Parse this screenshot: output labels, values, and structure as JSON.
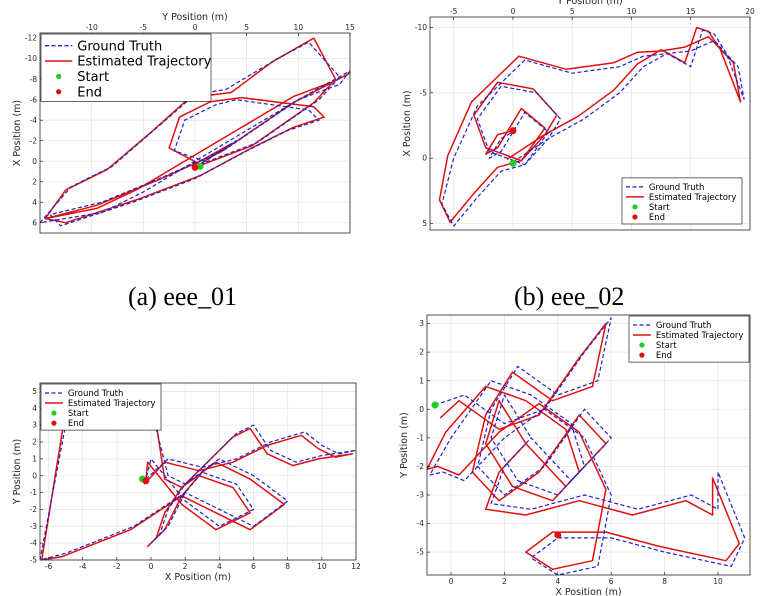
{
  "captions": [
    "(a) eee_01",
    "(b) eee_02"
  ],
  "colors": {
    "ground_truth": "#1f1fcc",
    "estimated": "#e01010",
    "start": "#22cc22",
    "end": "#e01010",
    "grid": "#e6e6e6"
  },
  "chart_data": [
    {
      "type": "line",
      "xlabel": "Y Position (m)",
      "ylabel": "X Position (m)",
      "x_axis_position": "top",
      "y_reversed": true,
      "xlim": [
        -15,
        15
      ],
      "ylim": [
        -12.5,
        7
      ],
      "xticks": [
        -10,
        -5,
        0,
        5,
        10,
        15
      ],
      "yticks": [
        -12,
        -10,
        -8,
        -6,
        -4,
        -2,
        0,
        2,
        4,
        6
      ],
      "grid": true,
      "legend": {
        "placement": "top-left",
        "font": 13,
        "entries": [
          "Ground Truth",
          "Estimated Trajectory",
          "Start",
          "End"
        ]
      },
      "series": [
        {
          "name": "Ground Truth",
          "x": [
            0.5,
            6,
            12,
            14,
            11,
            8,
            3,
            0,
            -4,
            -8,
            -12,
            -15,
            -9,
            -5,
            0,
            5,
            10,
            14,
            15,
            10,
            3,
            -3,
            -9,
            -14,
            -13,
            -6,
            0,
            5,
            9,
            12,
            11,
            4,
            2,
            -1,
            -2,
            1,
            4,
            0
          ],
          "y": [
            0.3,
            -1.8,
            -6,
            -8.2,
            -11.6,
            -10,
            -7,
            -6.5,
            -3,
            0.5,
            2.5,
            6,
            5,
            3,
            0,
            -3,
            -6,
            -7.5,
            -8.8,
            -6,
            -1.2,
            1.5,
            4,
            5.2,
            6.3,
            4,
            1.7,
            -1,
            -3,
            -4,
            -5,
            -6,
            -5.5,
            -4,
            -1,
            0,
            -2,
            0.6
          ]
        },
        {
          "name": "Estimated Trajectory",
          "x": [
            0,
            5.5,
            11.5,
            13.6,
            11.5,
            7.5,
            3.5,
            -0.5,
            -4.5,
            -8.5,
            -12.5,
            -14.5,
            -9.5,
            -5.5,
            -0.5,
            4.5,
            9.5,
            13.5,
            15,
            9.5,
            2.5,
            -3.5,
            -9.5,
            -14.5,
            -12.5,
            -5.5,
            0.5,
            5.5,
            9.5,
            12.5,
            11.5,
            4.5,
            1.5,
            -1.5,
            -2.5,
            0.5,
            3.5,
            -0.2
          ],
          "y": [
            0.6,
            -1.5,
            -5.7,
            -8,
            -12,
            -9.7,
            -6.7,
            -6.2,
            -2.6,
            0.8,
            2.8,
            5.6,
            4.6,
            2.7,
            -0.3,
            -3.3,
            -6.3,
            -7.8,
            -8.6,
            -5.7,
            -0.9,
            1.8,
            4.3,
            5.6,
            6,
            3.7,
            1.4,
            -1.3,
            -3.3,
            -4.3,
            -5.3,
            -6.2,
            -5.8,
            -4.3,
            -1.3,
            0.3,
            -1.7,
            0.4
          ]
        }
      ],
      "start": {
        "x": 0.5,
        "y": 0.5
      },
      "end": {
        "x": 0,
        "y": 0.6
      }
    },
    {
      "type": "line",
      "xlabel": "Y Position (m)",
      "ylabel": "X Position (m)",
      "x_axis_position": "top",
      "y_reversed": true,
      "xlim": [
        -7,
        20
      ],
      "ylim": [
        -10.8,
        5.5
      ],
      "xticks": [
        -5,
        0,
        5,
        10,
        15,
        20
      ],
      "yticks": [
        -10,
        -5,
        0,
        5
      ],
      "grid": true,
      "legend": {
        "placement": "bottom-right",
        "font": 8.5,
        "entries": [
          "Ground Truth",
          "Estimated Trajectory",
          "Start",
          "End"
        ]
      },
      "series": [
        {
          "name": "Ground Truth",
          "x": [
            0,
            3,
            6,
            9,
            11,
            13,
            15,
            16,
            17,
            18,
            19.5,
            19,
            17,
            15,
            13,
            11,
            9,
            5,
            1,
            -3,
            -5,
            -6,
            -5,
            -3,
            -1,
            1,
            3,
            4,
            2,
            -1,
            -3,
            -2,
            1,
            3,
            1,
            0,
            -1,
            -2,
            -1,
            0
          ],
          "y": [
            0.3,
            -1.5,
            -3,
            -5,
            -7,
            -8,
            -7,
            -9.8,
            -9.5,
            -8,
            -4.5,
            -7,
            -9,
            -8.2,
            -8,
            -7.8,
            -7,
            -6.5,
            -7.5,
            -4,
            0,
            3.5,
            5.2,
            3,
            1,
            0.5,
            -1.5,
            -3,
            -5,
            -5.5,
            -3,
            -0.5,
            0.5,
            -2,
            -3.5,
            -2,
            -0.5,
            0,
            -1.5,
            -2
          ]
        },
        {
          "name": "Estimated Trajectory",
          "x": [
            -0.5,
            2.5,
            5.5,
            8.5,
            10.5,
            12.5,
            14.5,
            15.5,
            16.5,
            17.5,
            19.2,
            18.6,
            16.5,
            14.5,
            12.5,
            10.5,
            8.5,
            4.5,
            0.5,
            -3.5,
            -5.5,
            -6.2,
            -5.3,
            -3.3,
            -1.3,
            0.7,
            2.7,
            3.7,
            1.7,
            -1.3,
            -3.3,
            -2.3,
            0.7,
            2.7,
            0.7,
            -0.3,
            -1.3,
            -2.3,
            -1.3,
            0
          ],
          "y": [
            0.1,
            -1.7,
            -3.2,
            -5.2,
            -7.2,
            -8.3,
            -7.3,
            -10,
            -9.7,
            -8.3,
            -4.3,
            -7.3,
            -9.3,
            -8.5,
            -8.2,
            -8.1,
            -7.3,
            -6.8,
            -7.8,
            -4.3,
            -0.2,
            3.2,
            4.9,
            2.7,
            0.7,
            0.2,
            -1.8,
            -3.3,
            -5.3,
            -5.8,
            -3.3,
            -0.8,
            0.2,
            -2.3,
            -3.8,
            -2.3,
            -0.8,
            -0.3,
            -1.8,
            -2.1
          ]
        }
      ],
      "start": {
        "x": 0,
        "y": 0.4
      },
      "end": {
        "x": 0,
        "y": -2.1
      }
    },
    {
      "type": "line",
      "xlabel": "X Position (m)",
      "ylabel": "Y Position (m)",
      "x_axis_position": "bottom",
      "y_reversed": false,
      "xlim": [
        -6.5,
        12
      ],
      "ylim": [
        -5,
        5.5
      ],
      "xticks": [
        -6,
        -4,
        -2,
        0,
        2,
        4,
        6,
        8,
        10,
        12
      ],
      "yticks": [
        -5,
        -4,
        -3,
        -2,
        -1,
        0,
        1,
        2,
        3,
        4,
        5
      ],
      "grid": true,
      "legend": {
        "placement": "top-left",
        "font": 8.5,
        "entries": [
          "Ground Truth",
          "Estimated Trajectory",
          "Start",
          "End"
        ]
      },
      "series": [
        {
          "name": "Ground Truth",
          "x": [
            -0.3,
            1,
            3,
            5,
            6,
            7,
            8,
            9,
            10,
            11,
            12,
            10,
            8.5,
            7,
            6,
            5,
            4,
            3,
            2,
            1,
            0,
            -1,
            -3,
            -5,
            -6.5,
            -5,
            -3,
            -1,
            0.5,
            2,
            4,
            6,
            8,
            6,
            4,
            2,
            1,
            0.5,
            0,
            1,
            2,
            3,
            5,
            6,
            4,
            2,
            0,
            -0.3
          ],
          "y": [
            -0.2,
            1,
            0.5,
            1,
            1.5,
            2,
            2.3,
            2.6,
            1.8,
            1.3,
            1.5,
            1.2,
            0.8,
            1.5,
            3,
            2.5,
            1.5,
            0.5,
            -0.5,
            0,
            4,
            5,
            4.5,
            3,
            -5,
            -4.6,
            -3.8,
            -3,
            -2,
            -1,
            -2,
            -3,
            -1.5,
            0,
            1,
            -0.5,
            -2,
            -3.5,
            -4,
            -3,
            -1,
            0.2,
            -0.5,
            -2,
            -3,
            -1.5,
            1,
            -0.2
          ]
        },
        {
          "name": "Estimated Trajectory",
          "x": [
            -0.4,
            0.8,
            2.8,
            4.8,
            5.8,
            6.8,
            7.8,
            8.8,
            9.8,
            10.8,
            11.8,
            9.8,
            8.3,
            6.8,
            5.8,
            4.8,
            3.8,
            2.8,
            1.8,
            0.8,
            0.2,
            -1.1,
            -3.1,
            -5.1,
            -6.4,
            -5.2,
            -3.2,
            -1.2,
            0.3,
            1.8,
            3.8,
            5.8,
            7.8,
            5.8,
            3.8,
            1.8,
            0.8,
            0.3,
            -0.2,
            0.8,
            1.8,
            2.8,
            4.8,
            5.8,
            3.8,
            1.8,
            -0.2,
            -0.3
          ],
          "y": [
            -0.5,
            0.8,
            0.3,
            0.8,
            1.3,
            1.8,
            2.1,
            2.4,
            1.6,
            1.1,
            1.3,
            1,
            0.6,
            1.3,
            2.8,
            2.3,
            1.3,
            0.3,
            -0.7,
            -0.2,
            3.8,
            5.2,
            4.7,
            3.2,
            -5,
            -4.8,
            -4,
            -3.2,
            -2.2,
            -1.2,
            -2.2,
            -3.2,
            -1.7,
            -0.2,
            0.8,
            -0.7,
            -2.2,
            -3.7,
            -4.2,
            -3.2,
            -1.2,
            0,
            -0.7,
            -2.2,
            -3.2,
            -1.7,
            0.8,
            -0.3
          ]
        }
      ],
      "start": {
        "x": -0.5,
        "y": -0.2
      },
      "end": {
        "x": -0.3,
        "y": -0.3
      }
    },
    {
      "type": "line",
      "xlabel": "X Position (m)",
      "ylabel": "Y Position (m)",
      "x_axis_position": "bottom",
      "y_reversed": false,
      "xlim": [
        -0.9,
        11.2
      ],
      "ylim": [
        -5.8,
        3.3
      ],
      "xticks": [
        0,
        2,
        4,
        6,
        8,
        10
      ],
      "yticks": [
        -5,
        -4,
        -3,
        -2,
        -1,
        0,
        1,
        2,
        3
      ],
      "grid": true,
      "legend": {
        "placement": "top-right",
        "font": 8.5,
        "entries": [
          "Ground Truth",
          "Estimated Trajectory",
          "Start",
          "End"
        ]
      },
      "series": [
        {
          "name": "Ground Truth",
          "x": [
            -0.6,
            0.5,
            2,
            3.5,
            5,
            6,
            5.5,
            4,
            2.5,
            1.5,
            1,
            2,
            3.5,
            5,
            6,
            4.5,
            3,
            2,
            1.5,
            3,
            5,
            7,
            9,
            10,
            10,
            11,
            10.5,
            8,
            6,
            4,
            3,
            4,
            5.5,
            6,
            5,
            3.5,
            2,
            1,
            0.5,
            -0.3,
            -0.8,
            0,
            1.5,
            3,
            4.5,
            5,
            4,
            2.5,
            1.5,
            2,
            3
          ],
          "y": [
            0.15,
            0.5,
            -0.5,
            0,
            2,
            3.2,
            1,
            0.5,
            1.5,
            0,
            -2,
            -3,
            -2,
            0,
            -1,
            -2.5,
            -1,
            -2,
            -3.3,
            -3.5,
            -3,
            -3.5,
            -3,
            -3.5,
            -2.2,
            -4.5,
            -5.5,
            -5,
            -4.5,
            -4.5,
            -5.2,
            -5.8,
            -5.5,
            -3,
            -1,
            0,
            -1,
            -2,
            -2.5,
            -2.2,
            -2.3,
            -1,
            1,
            0.5,
            -0.5,
            -2,
            -3,
            -2.5,
            -1,
            0.5,
            -1
          ]
        },
        {
          "name": "Estimated Trajectory",
          "x": [
            -0.4,
            0.3,
            1.8,
            3.3,
            4.8,
            5.8,
            5.3,
            3.8,
            2.3,
            1.3,
            0.8,
            1.8,
            3.3,
            4.8,
            5.8,
            4.3,
            2.8,
            1.8,
            1.3,
            2.8,
            4.8,
            6.8,
            8.8,
            9.8,
            9.8,
            10.8,
            10.3,
            7.8,
            5.8,
            3.8,
            2.8,
            3.8,
            5.3,
            5.8,
            4.8,
            3.3,
            1.8,
            0.8,
            0.3,
            -0.5,
            -0.9,
            -0.2,
            1.3,
            2.8,
            4.3,
            4.8,
            3.8,
            2.3,
            1.3,
            1.8,
            2.8
          ],
          "y": [
            -0.3,
            0.3,
            -0.7,
            -0.2,
            1.8,
            3,
            0.8,
            0.3,
            1.3,
            -0.2,
            -2.2,
            -3.2,
            -2.2,
            -0.2,
            -1.2,
            -2.7,
            -1.2,
            -2.2,
            -3.5,
            -3.7,
            -3.2,
            -3.7,
            -3.2,
            -3.7,
            -2.4,
            -4.7,
            -5.3,
            -4.8,
            -4.3,
            -4.3,
            -5,
            -5.6,
            -5.3,
            -2.8,
            -0.8,
            0.2,
            -0.8,
            -1.8,
            -2.3,
            -2,
            -2.1,
            -0.8,
            0.8,
            0.3,
            -0.7,
            -2.2,
            -3.2,
            -2.7,
            -1.2,
            0.3,
            -1.2
          ]
        }
      ],
      "start": {
        "x": -0.6,
        "y": 0.15
      },
      "end": {
        "x": 4,
        "y": -4.4
      }
    }
  ]
}
